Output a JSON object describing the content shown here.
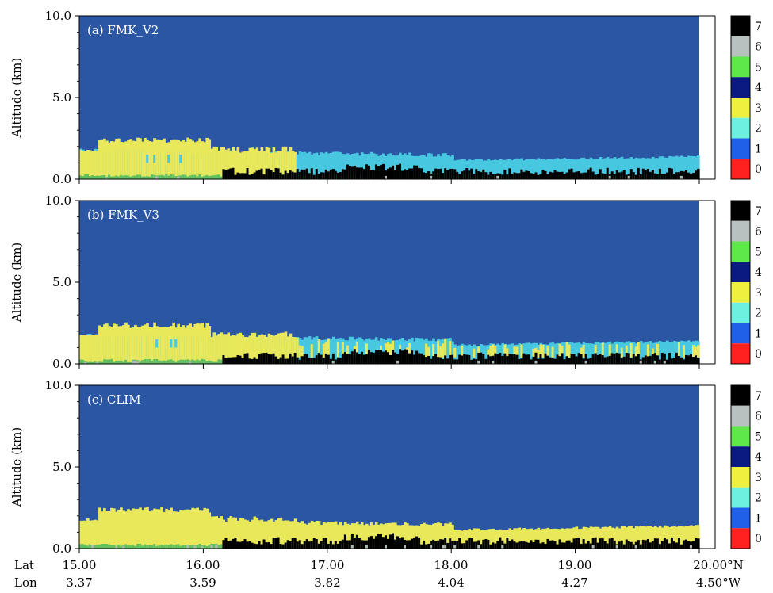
{
  "chart_data": [
    {
      "type": "heatmap",
      "panel_label": "(a) FMK_V2",
      "ylabel": "Altitude (km)",
      "ylim": [
        0,
        10
      ],
      "yticks": [
        "0.0",
        "5.0",
        "10.0"
      ],
      "xlim": [
        15.0,
        20.0
      ],
      "layers": {
        "top_red": 0.2,
        "black": 0.5,
        "cyan": 1.45,
        "yellow_peak": 2.6
      }
    },
    {
      "type": "heatmap",
      "panel_label": "(b) FMK_V3",
      "ylabel": "Altitude (km)",
      "ylim": [
        0,
        10
      ],
      "yticks": [
        "0.0",
        "5.0",
        "10.0"
      ],
      "xlim": [
        15.0,
        20.0
      ],
      "layers": {
        "top_red": 0.2,
        "black": 0.5,
        "cyan": 1.45,
        "yellow_peak": 2.6
      }
    },
    {
      "type": "heatmap",
      "panel_label": "(c) CLIM",
      "ylabel": "Altitude (km)",
      "ylim": [
        0,
        10
      ],
      "yticks": [
        "0.0",
        "5.0",
        "10.0"
      ],
      "xlim": [
        15.0,
        20.0
      ],
      "layers": {
        "top_red": 0.2,
        "black": 0.5,
        "yellow": 1.45,
        "yellow_peak": 2.6
      }
    }
  ],
  "x_axis": {
    "lat_title": "Lat",
    "lon_title": "Lon",
    "lat_ticks": [
      "15.00",
      "16.00",
      "17.00",
      "18.00",
      "19.00",
      "20.00°N"
    ],
    "lon_ticks": [
      "3.37",
      "3.59",
      "3.82",
      "4.04",
      "4.27",
      "4.50°W"
    ]
  },
  "colorbar": {
    "labels": [
      "7",
      "6",
      "5",
      "4",
      "3",
      "2",
      "1",
      "0"
    ],
    "colors": [
      "#000000",
      "#b8c0c0",
      "#5ee84a",
      "#0a1a80",
      "#eef040",
      "#6ef0e0",
      "#2060e8",
      "#ff2020"
    ]
  },
  "colors": {
    "background": "#2a56a4",
    "yellow": "#e8e85a",
    "cyan": "#48c8e0",
    "black": "#000000",
    "green": "#60c060",
    "gray": "#b0b8b8",
    "red": "#ff2020"
  }
}
